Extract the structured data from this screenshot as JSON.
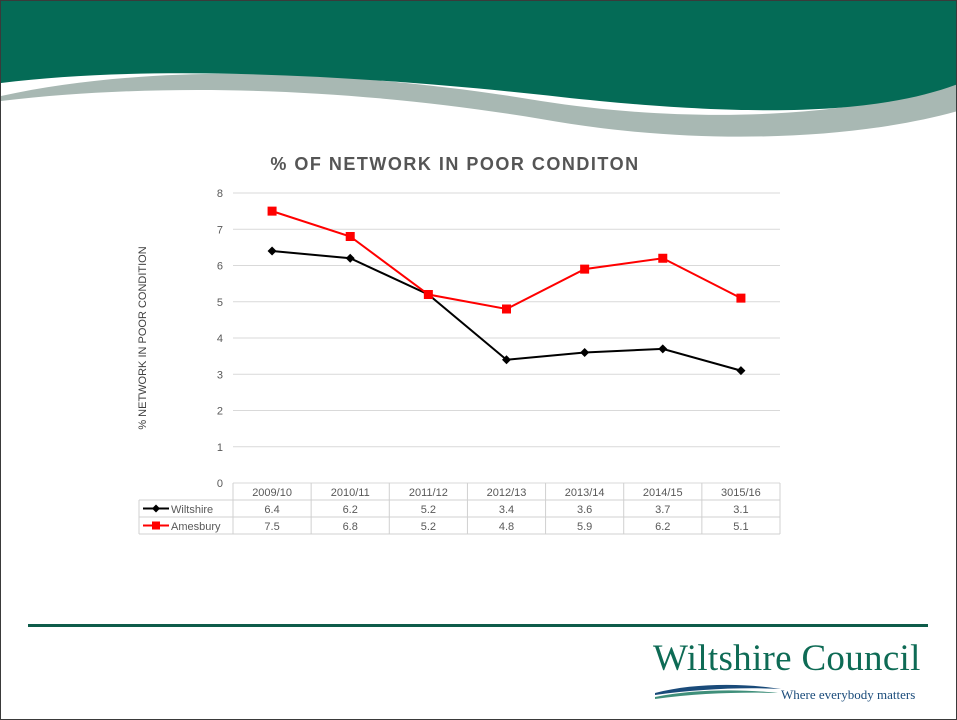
{
  "colors": {
    "header": "#046b56",
    "wiltshire": "#000000",
    "amesbury": "#ff0000",
    "grid": "#d9d9d9",
    "logo": "#0e6b55",
    "tagline": "#1a4b7a"
  },
  "logo": {
    "name": "Wiltshire Council",
    "tagline": "Where everybody matters"
  },
  "chart_data": {
    "type": "line",
    "title": "% OF NETWORK IN POOR CONDITON",
    "ylabel": "% NETWORK IN POOR CONDITION",
    "xlabel": "",
    "ylim": [
      0,
      8
    ],
    "yticks": [
      "0",
      "1",
      "2",
      "3",
      "4",
      "5",
      "6",
      "7",
      "8"
    ],
    "grid": true,
    "legend": "data-table",
    "categories": [
      "2009/10",
      "2010/11",
      "2011/12",
      "2012/13",
      "2013/14",
      "2014/15",
      "3015/16"
    ],
    "series": [
      {
        "name": "Wiltshire",
        "values": [
          6.4,
          6.2,
          5.2,
          3.4,
          3.6,
          3.7,
          3.1
        ],
        "labels": [
          "6.4",
          "6.2",
          "5.2",
          "3.4",
          "3.6",
          "3.7",
          "3.1"
        ],
        "color": "#000000",
        "marker": "diamond"
      },
      {
        "name": "Amesbury",
        "values": [
          7.5,
          6.8,
          5.2,
          4.8,
          5.9,
          6.2,
          5.1
        ],
        "labels": [
          "7.5",
          "6.8",
          "5.2",
          "4.8",
          "5.9",
          "6.2",
          "5.1"
        ],
        "color": "#ff0000",
        "marker": "square"
      }
    ]
  }
}
